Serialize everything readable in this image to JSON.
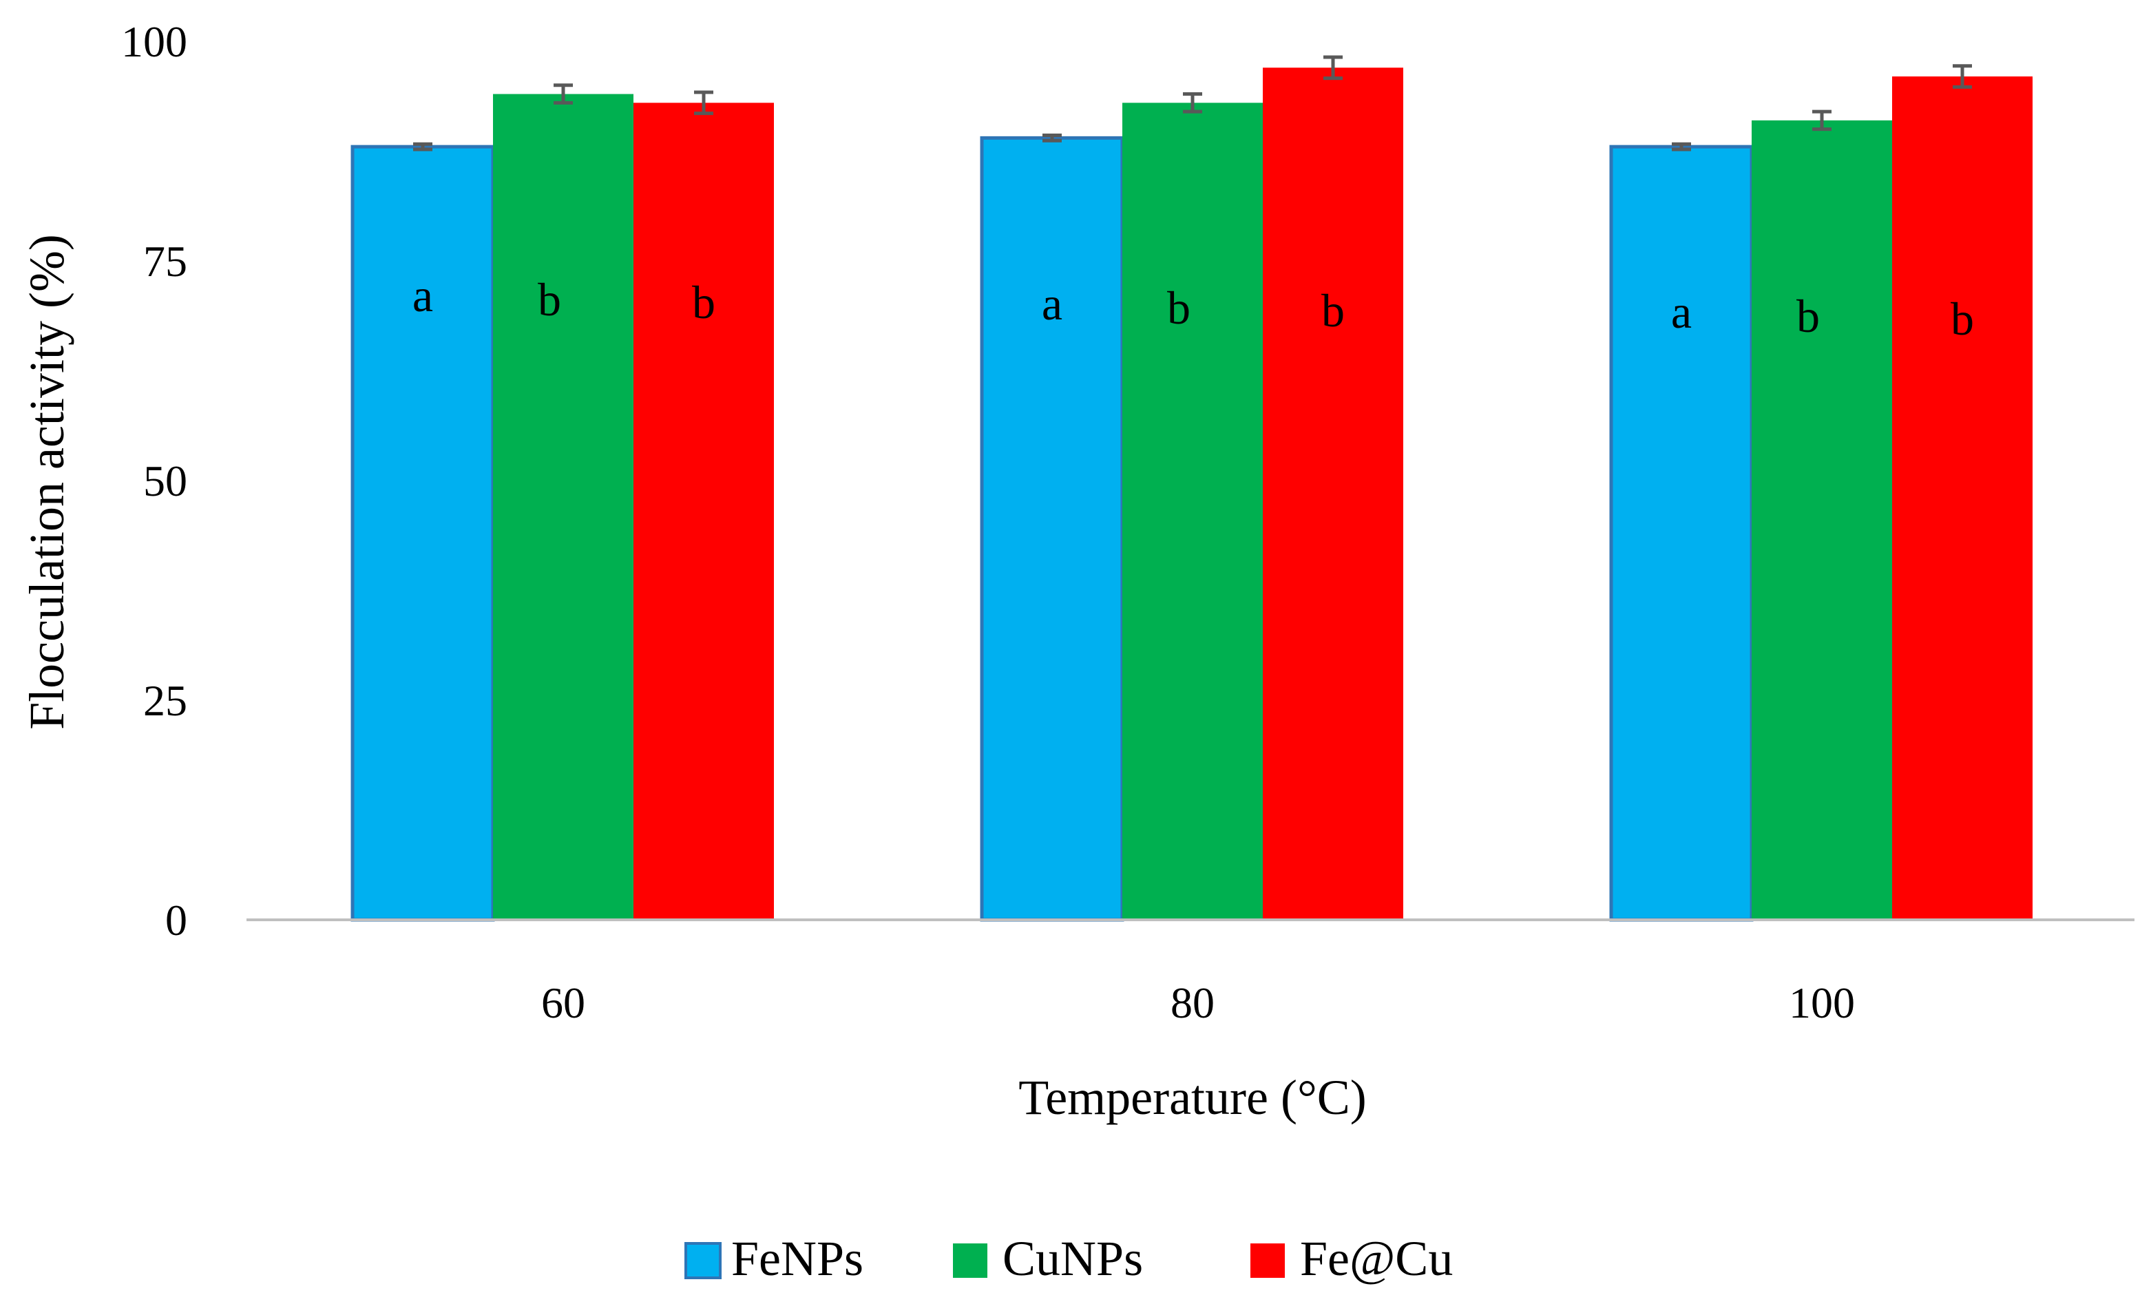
{
  "chart_data": {
    "type": "bar",
    "title": "",
    "xlabel": "Temperature (°C)",
    "ylabel": "Flocculation activity (%)",
    "ylim": [
      0,
      100
    ],
    "yticks": [
      0,
      25,
      50,
      75,
      100
    ],
    "ytick_labels": [
      "0",
      "25",
      "50",
      "75",
      "100"
    ],
    "categories": [
      "60",
      "80",
      "100"
    ],
    "grid": false,
    "legend_position": "bottom",
    "series": [
      {
        "name": "FeNPs",
        "color": "#00B0F0",
        "edge_color": "#2E75B6",
        "values": [
          88,
          89,
          88
        ],
        "errors": [
          0.3,
          0.3,
          0.3
        ],
        "significance": [
          "a",
          "a",
          "a"
        ]
      },
      {
        "name": "CuNPs",
        "color": "#00B050",
        "values": [
          94,
          93,
          91
        ],
        "errors": [
          1.0,
          1.0,
          1.0
        ],
        "significance": [
          "b",
          "b",
          "b"
        ]
      },
      {
        "name": "Fe@Cu",
        "color": "#FF0000",
        "values": [
          93,
          97,
          96
        ],
        "errors": [
          1.2,
          1.2,
          1.2
        ],
        "significance": [
          "b",
          "b",
          "b"
        ]
      }
    ],
    "axis_color": "#BFBFBF",
    "errorbar_color": "#595959"
  }
}
